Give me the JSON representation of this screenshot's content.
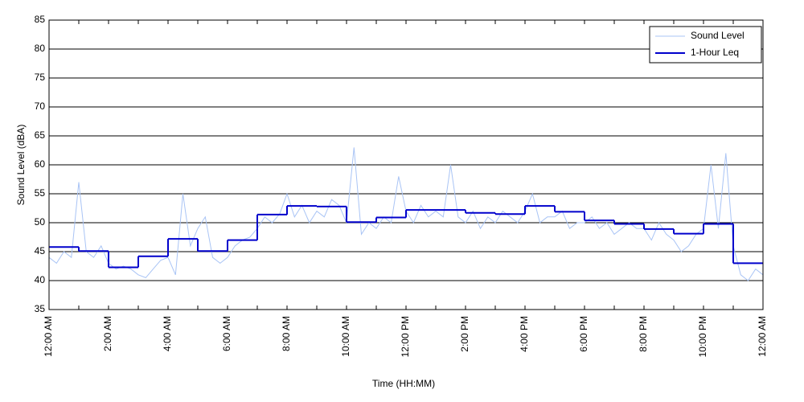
{
  "chart_data": {
    "type": "line",
    "xlabel": "Time (HH:MM)",
    "ylabel": "Sound Level (dBA)",
    "xlim": [
      0,
      24
    ],
    "ylim": [
      35,
      85
    ],
    "xticks": [
      {
        "value": 0,
        "label": "12:00 AM"
      },
      {
        "value": 2,
        "label": "2:00 AM"
      },
      {
        "value": 4,
        "label": "4:00 AM"
      },
      {
        "value": 6,
        "label": "6:00 AM"
      },
      {
        "value": 8,
        "label": "8:00 AM"
      },
      {
        "value": 10,
        "label": "10:00 AM"
      },
      {
        "value": 12,
        "label": "12:00 PM"
      },
      {
        "value": 14,
        "label": "2:00 PM"
      },
      {
        "value": 16,
        "label": "4:00 PM"
      },
      {
        "value": 18,
        "label": "6:00 PM"
      },
      {
        "value": 20,
        "label": "8:00 PM"
      },
      {
        "value": 22,
        "label": "10:00 PM"
      },
      {
        "value": 24,
        "label": "12:00 AM"
      }
    ],
    "xminorticks": [
      1,
      3,
      5,
      7,
      9,
      11,
      13,
      15,
      17,
      19,
      21,
      23
    ],
    "yticks": [
      35,
      40,
      45,
      50,
      55,
      60,
      65,
      70,
      75,
      80,
      85
    ],
    "grid": "y",
    "legend": "upper right",
    "series": [
      {
        "name": "Sound Level",
        "color": "#a9c4f5",
        "x": [
          0,
          0.25,
          0.5,
          0.75,
          1,
          1.25,
          1.5,
          1.75,
          2,
          2.25,
          2.5,
          2.75,
          3,
          3.25,
          3.5,
          3.75,
          4,
          4.25,
          4.5,
          4.75,
          5,
          5.25,
          5.5,
          5.75,
          6,
          6.25,
          6.5,
          6.75,
          7,
          7.25,
          7.5,
          7.75,
          8,
          8.25,
          8.5,
          8.75,
          9,
          9.25,
          9.5,
          9.75,
          10,
          10.25,
          10.5,
          10.75,
          11,
          11.25,
          11.5,
          11.75,
          12,
          12.25,
          12.5,
          12.75,
          13,
          13.25,
          13.5,
          13.75,
          14,
          14.25,
          14.5,
          14.75,
          15,
          15.25,
          15.5,
          15.75,
          16,
          16.25,
          16.5,
          16.75,
          17,
          17.25,
          17.5,
          17.75,
          18,
          18.25,
          18.5,
          18.75,
          19,
          19.25,
          19.5,
          19.75,
          20,
          20.25,
          20.5,
          20.75,
          21,
          21.25,
          21.5,
          21.75,
          22,
          22.25,
          22.5,
          22.75,
          23,
          23.25,
          23.5,
          23.75,
          24
        ],
        "values": [
          44,
          43,
          45,
          44,
          57,
          45,
          44,
          46,
          43,
          42,
          42.5,
          42,
          41,
          40.5,
          42,
          43.5,
          44,
          41,
          55,
          46,
          49,
          51,
          44,
          43,
          44,
          46,
          47,
          47.5,
          49,
          51,
          50,
          51.5,
          55,
          51,
          53,
          50,
          52,
          51,
          54,
          53,
          50,
          63,
          48,
          50,
          49,
          51,
          50,
          58,
          52,
          50,
          53,
          51,
          52,
          51,
          60,
          51,
          50,
          52,
          49,
          51,
          50,
          52,
          51,
          50,
          52,
          55,
          50,
          51,
          51,
          52,
          49,
          50,
          50,
          51,
          49,
          50,
          48,
          49,
          50,
          49,
          49,
          47,
          50,
          48,
          47,
          45,
          46,
          48,
          49,
          60,
          49,
          62,
          46,
          41,
          40,
          42,
          41
        ]
      },
      {
        "name": "1-Hour Leq",
        "color": "#0000cc",
        "step": "post",
        "x": [
          0,
          1,
          2,
          3,
          4,
          5,
          6,
          7,
          8,
          9,
          10,
          11,
          12,
          13,
          14,
          15,
          16,
          17,
          18,
          19,
          20,
          21,
          22,
          23
        ],
        "values": [
          45.8,
          45.1,
          42.3,
          44.2,
          47.2,
          45.1,
          47.0,
          51.4,
          52.9,
          52.8,
          50.1,
          50.9,
          52.2,
          52.2,
          51.7,
          51.5,
          52.9,
          51.9,
          50.4,
          49.8,
          48.9,
          48.1,
          49.8,
          43.0
        ]
      }
    ]
  }
}
